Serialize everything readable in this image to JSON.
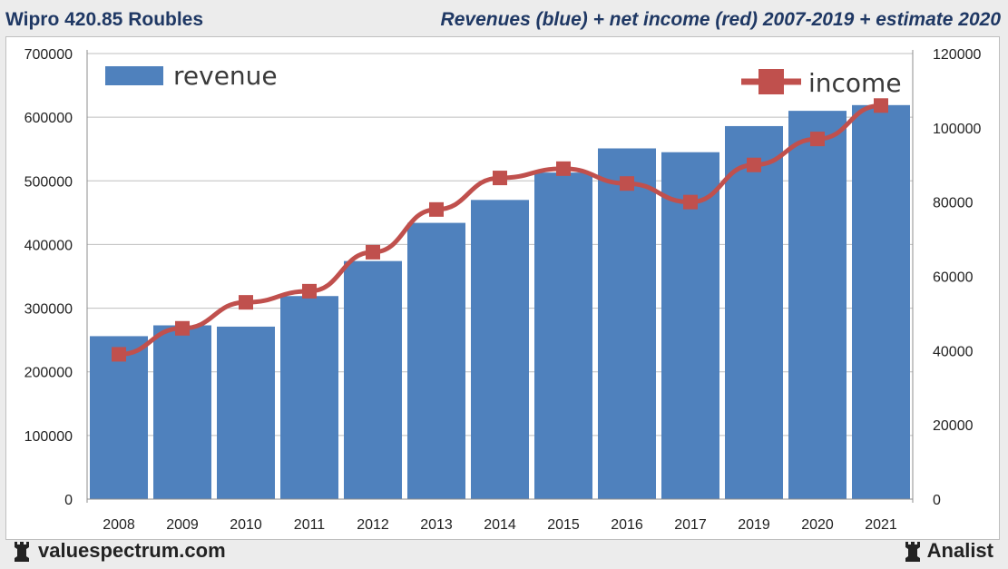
{
  "header": {
    "title": "Wipro 420.85 Roubles",
    "subtitle": "Revenues (blue) + net income (red) 2007-2019 + estimate 2020"
  },
  "footer": {
    "site": "valuespectrum.com",
    "brand": "Analist"
  },
  "chart_data": {
    "type": "bar",
    "categories": [
      "2008",
      "2009",
      "2010",
      "2011",
      "2012",
      "2013",
      "2014",
      "2015",
      "2016",
      "2017",
      "2019",
      "2020",
      "2021"
    ],
    "series": [
      {
        "name": "revenue",
        "type": "bar",
        "axis": "left",
        "color": "#4f81bd",
        "values": [
          256000,
          273000,
          271000,
          319000,
          374000,
          434000,
          470000,
          513000,
          551000,
          545000,
          586000,
          610000,
          619000
        ]
      },
      {
        "name": "income",
        "type": "line",
        "axis": "right",
        "color": "#c0504d",
        "values": [
          39000,
          46000,
          53000,
          56000,
          66500,
          78000,
          86500,
          89000,
          85000,
          80000,
          90000,
          97000,
          106000
        ]
      }
    ],
    "y_left": {
      "ticks": [
        "0",
        "100000",
        "200000",
        "300000",
        "400000",
        "500000",
        "600000",
        "700000"
      ],
      "range": [
        0,
        700000
      ]
    },
    "y_right": {
      "ticks": [
        "0",
        "20000",
        "40000",
        "60000",
        "80000",
        "100000",
        "120000"
      ],
      "range": [
        0,
        120000
      ]
    },
    "grid": true,
    "legend": [
      "revenue (top-left)",
      "income (top-right)"
    ]
  }
}
